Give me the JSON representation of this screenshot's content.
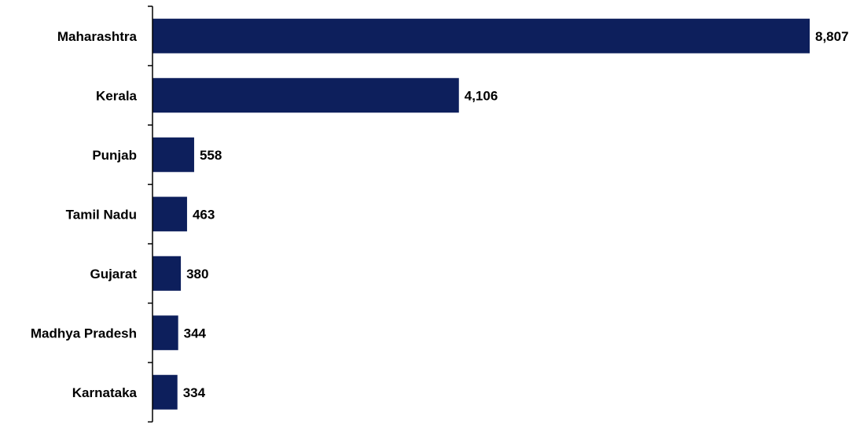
{
  "chart_data": {
    "type": "bar",
    "orientation": "horizontal",
    "title": "",
    "xlabel": "",
    "ylabel": "",
    "categories": [
      "Maharashtra",
      "Kerala",
      "Punjab",
      "Tamil Nadu",
      "Gujarat",
      "Madhya Pradesh",
      "Karnataka"
    ],
    "values": [
      8807,
      4106,
      558,
      463,
      380,
      344,
      334
    ],
    "value_labels": [
      "8,807",
      "4,106",
      "558",
      "463",
      "380",
      "344",
      "334"
    ],
    "xlim": [
      0,
      9000
    ],
    "grid": false,
    "legend": "none",
    "bar_color": "#0d1f5c",
    "text_color": "#000000"
  }
}
